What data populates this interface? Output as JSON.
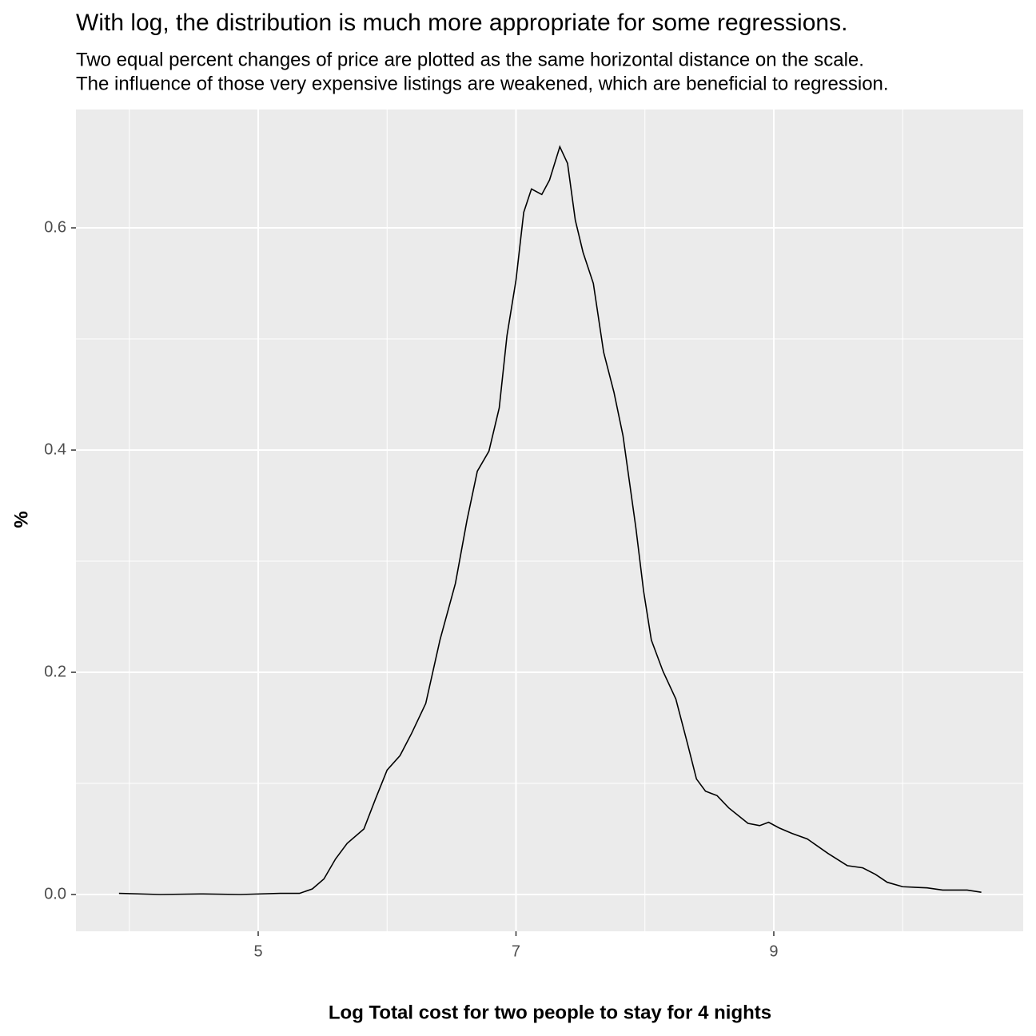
{
  "chart_data": {
    "type": "line",
    "title": "With log, the distribution is much more appropriate for some regressions.",
    "subtitle": [
      "Two equal percent changes of price are plotted as the same horizontal distance on the scale.",
      "The influence of those very expensive listings are weakened, which are beneficial to regression."
    ],
    "x_label": "Log Total cost for two people to stay for 4 nights",
    "y_label": "%",
    "x": [
      3.92,
      4.24,
      4.55,
      4.86,
      5.17,
      5.32,
      5.42,
      5.51,
      5.6,
      5.69,
      5.82,
      5.91,
      6.0,
      6.1,
      6.19,
      6.3,
      6.41,
      6.53,
      6.62,
      6.7,
      6.79,
      6.87,
      6.93,
      7.0,
      7.06,
      7.12,
      7.2,
      7.26,
      7.34,
      7.4,
      7.46,
      7.52,
      7.6,
      7.68,
      7.76,
      7.83,
      7.93,
      7.99,
      8.05,
      8.14,
      8.24,
      8.33,
      8.4,
      8.47,
      8.56,
      8.65,
      8.8,
      8.89,
      8.96,
      9.04,
      9.14,
      9.26,
      9.42,
      9.57,
      9.69,
      9.79,
      9.88,
      10.0,
      10.19,
      10.31,
      10.5,
      10.61
    ],
    "series": [
      {
        "name": "density",
        "color": "#000000",
        "values": [
          0.001,
          0,
          0.0005,
          0,
          0.001,
          0.001,
          0.005,
          0.014,
          0.032,
          0.046,
          0.059,
          0.086,
          0.112,
          0.125,
          0.145,
          0.172,
          0.229,
          0.28,
          0.337,
          0.381,
          0.399,
          0.438,
          0.503,
          0.553,
          0.614,
          0.635,
          0.63,
          0.643,
          0.673,
          0.658,
          0.607,
          0.578,
          0.55,
          0.488,
          0.452,
          0.413,
          0.33,
          0.273,
          0.229,
          0.201,
          0.176,
          0.136,
          0.104,
          0.093,
          0.089,
          0.078,
          0.064,
          0.062,
          0.065,
          0.06,
          0.055,
          0.05,
          0.037,
          0.026,
          0.024,
          0.018,
          0.011,
          0.007,
          0.006,
          0.004,
          0.004,
          0.002
        ]
      }
    ],
    "xlim": [
      3.586,
      10.935
    ],
    "ylim": [
      -0.0331,
      0.7065
    ],
    "xticks": [
      5,
      7,
      9
    ],
    "xminorticks": [
      4,
      6,
      8,
      10
    ],
    "yticks": [
      {
        "value": 0,
        "label": "0.0"
      },
      {
        "value": 0.2,
        "label": "0.2"
      },
      {
        "value": 0.4,
        "label": "0.4"
      },
      {
        "value": 0.6,
        "label": "0.6"
      }
    ],
    "yminorticks": [
      0.1,
      0.3,
      0.5
    ],
    "grid": true
  }
}
